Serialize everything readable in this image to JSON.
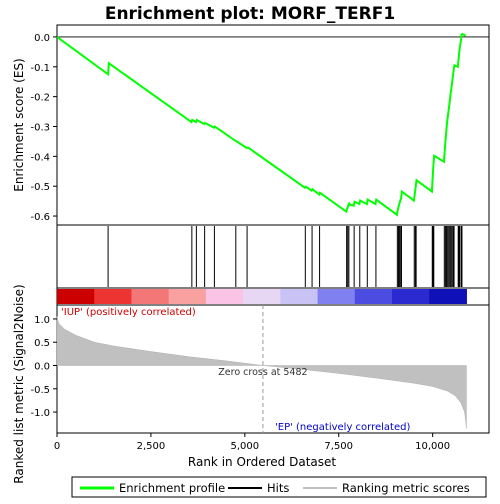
{
  "chart_data": {
    "type": "line",
    "title": "Enrichment plot: MORF_TERF1",
    "top_panel": {
      "ylabel": "Enrichment score (ES)",
      "ylim": [
        -0.63,
        0.04
      ],
      "yticks": [
        0.0,
        -0.1,
        -0.2,
        -0.3,
        -0.4,
        -0.5,
        -0.6
      ],
      "ytick_labels": [
        "0.0",
        "-0.1",
        "-0.2",
        "-0.3",
        "-0.4",
        "-0.5",
        "-0.6"
      ],
      "series": [
        {
          "name": "Enrichment profile",
          "color": "#00ff00",
          "points": [
            [
              0,
              0.0
            ],
            [
              1360,
              -0.125
            ],
            [
              1380,
              -0.088
            ],
            [
              3580,
              -0.285
            ],
            [
              3600,
              -0.278
            ],
            [
              3700,
              -0.285
            ],
            [
              3720,
              -0.278
            ],
            [
              3920,
              -0.292
            ],
            [
              3940,
              -0.288
            ],
            [
              4180,
              -0.304
            ],
            [
              4200,
              -0.3
            ],
            [
              4750,
              -0.348
            ],
            [
              4780,
              -0.35
            ],
            [
              5050,
              -0.372
            ],
            [
              5080,
              -0.37
            ],
            [
              6600,
              -0.505
            ],
            [
              6630,
              -0.502
            ],
            [
              6780,
              -0.515
            ],
            [
              6800,
              -0.51
            ],
            [
              6980,
              -0.528
            ],
            [
              7000,
              -0.522
            ],
            [
              7700,
              -0.585
            ],
            [
              7720,
              -0.578
            ],
            [
              7760,
              -0.562
            ],
            [
              7780,
              -0.558
            ],
            [
              7800,
              -0.562
            ],
            [
              7900,
              -0.565
            ],
            [
              7920,
              -0.552
            ],
            [
              8050,
              -0.56
            ],
            [
              8070,
              -0.548
            ],
            [
              8250,
              -0.56
            ],
            [
              8270,
              -0.545
            ],
            [
              8480,
              -0.56
            ],
            [
              8500,
              -0.545
            ],
            [
              9050,
              -0.596
            ],
            [
              9070,
              -0.58
            ],
            [
              9100,
              -0.565
            ],
            [
              9130,
              -0.552
            ],
            [
              9160,
              -0.54
            ],
            [
              9180,
              -0.518
            ],
            [
              9500,
              -0.548
            ],
            [
              9520,
              -0.53
            ],
            [
              9550,
              -0.5
            ],
            [
              9570,
              -0.48
            ],
            [
              9980,
              -0.518
            ],
            [
              10000,
              -0.472
            ],
            [
              10020,
              -0.43
            ],
            [
              10040,
              -0.398
            ],
            [
              10300,
              -0.418
            ],
            [
              10320,
              -0.385
            ],
            [
              10340,
              -0.35
            ],
            [
              10360,
              -0.32
            ],
            [
              10380,
              -0.29
            ],
            [
              10400,
              -0.27
            ],
            [
              10420,
              -0.25
            ],
            [
              10440,
              -0.232
            ],
            [
              10460,
              -0.21
            ],
            [
              10480,
              -0.188
            ],
            [
              10500,
              -0.172
            ],
            [
              10520,
              -0.15
            ],
            [
              10540,
              -0.13
            ],
            [
              10560,
              -0.11
            ],
            [
              10580,
              -0.095
            ],
            [
              10670,
              -0.1
            ],
            [
              10690,
              -0.075
            ],
            [
              10710,
              -0.048
            ],
            [
              10730,
              -0.03
            ],
            [
              10750,
              -0.015
            ],
            [
              10770,
              0.008
            ],
            [
              10790,
              0.01
            ],
            [
              10880,
              0.004
            ]
          ]
        }
      ]
    },
    "hits": [
      1360,
      3590,
      3710,
      3930,
      4190,
      4760,
      5060,
      6610,
      6790,
      6990,
      7710,
      7740,
      7770,
      7910,
      8060,
      8260,
      8490,
      9060,
      9090,
      9120,
      9150,
      9170,
      9510,
      9540,
      9560,
      9990,
      10010,
      10030,
      10310,
      10340,
      10370,
      10400,
      10430,
      10460,
      10490,
      10520,
      10550,
      10570,
      10680,
      10700,
      10720,
      10760,
      10780
    ],
    "bottom_panel": {
      "ylabel": "Ranked list metric (Signal2Noise)",
      "xlabel": "Rank in Ordered Dataset",
      "ylim": [
        -1.45,
        1.3
      ],
      "yticks": [
        1.0,
        0.5,
        0.0,
        -0.5,
        -1.0
      ],
      "ytick_labels": [
        "1.0",
        "0.5",
        "0.0",
        "-0.5",
        "-1.0"
      ],
      "series": [
        {
          "name": "Ranking metric scores",
          "color": "#c0c0c0",
          "points": [
            [
              0,
              1.05
            ],
            [
              50,
              0.9
            ],
            [
              200,
              0.78
            ],
            [
              500,
              0.65
            ],
            [
              1000,
              0.5
            ],
            [
              1500,
              0.42
            ],
            [
              2500,
              0.3
            ],
            [
              3500,
              0.19
            ],
            [
              4500,
              0.1
            ],
            [
              5482,
              0.0
            ],
            [
              6500,
              -0.08
            ],
            [
              7500,
              -0.17
            ],
            [
              8500,
              -0.27
            ],
            [
              9500,
              -0.38
            ],
            [
              10000,
              -0.45
            ],
            [
              10400,
              -0.55
            ],
            [
              10600,
              -0.65
            ],
            [
              10750,
              -0.8
            ],
            [
              10850,
              -1.0
            ],
            [
              10900,
              -1.35
            ]
          ]
        }
      ],
      "zero_cross_label": "Zero cross at 5482",
      "zero_cross": 5482,
      "pos_label": "'IUP' (positively correlated)",
      "neg_label": "'EP' (negatively correlated)"
    },
    "xlim": [
      0,
      11500
    ],
    "xticks": [
      0,
      2500,
      5000,
      7500,
      10000
    ],
    "xtick_labels": [
      "0",
      "2,500",
      "5,000",
      "7,500",
      "10,000"
    ],
    "n_genes": 10900,
    "colors": {
      "profile": "#00ff00",
      "hit": "#000000",
      "metric": "#c0c0c0",
      "pos_text": "#cc0000",
      "neg_text": "#0000cc",
      "heat": [
        "#cc0000",
        "#ee3333",
        "#f47777",
        "#f9a0a0",
        "#fbc4e6",
        "#e7d6f4",
        "#c9c2f4",
        "#8080f0",
        "#4c4ce0",
        "#2a2ad0",
        "#1010b8"
      ]
    },
    "legend": {
      "items": [
        {
          "label": "Enrichment profile",
          "color": "#00ff00"
        },
        {
          "label": "Hits",
          "color": "#000000"
        },
        {
          "label": "Ranking metric scores",
          "color": "#c0c0c0"
        }
      ]
    }
  }
}
